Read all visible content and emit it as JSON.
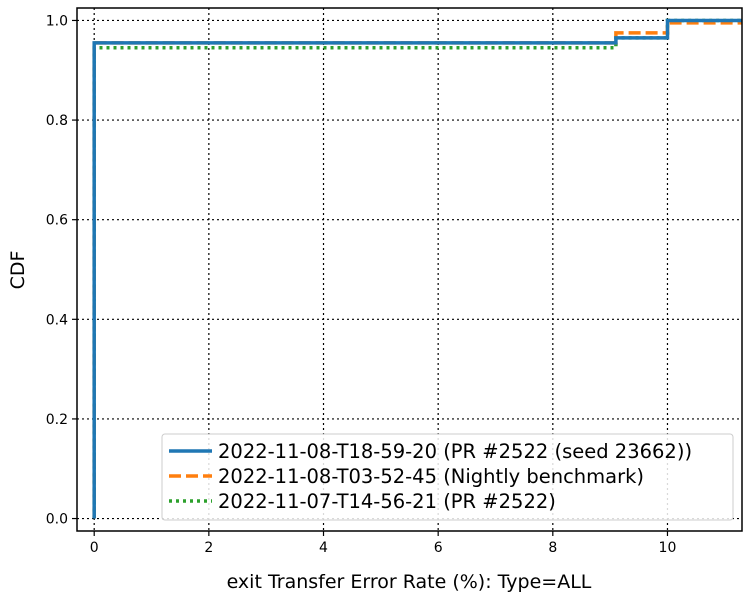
{
  "chart_data": {
    "type": "line",
    "step": true,
    "title": "",
    "xlabel": "exit Transfer Error Rate (%): Type=ALL",
    "ylabel": "CDF",
    "xlim": [
      -0.3,
      11.3
    ],
    "ylim": [
      -0.025,
      1.025
    ],
    "xticks": [
      0,
      2,
      4,
      6,
      8,
      10
    ],
    "yticks": [
      0.0,
      0.2,
      0.4,
      0.6,
      0.8,
      1.0
    ],
    "xtick_labels": [
      "0",
      "2",
      "4",
      "6",
      "8",
      "10"
    ],
    "ytick_labels": [
      "0.0",
      "0.2",
      "0.4",
      "0.6",
      "0.8",
      "1.0"
    ],
    "grid": true,
    "legend_position": "lower-right",
    "series": [
      {
        "name": "2022-11-08-T18-59-20 (PR #2522 (seed 23662))",
        "color": "#1f77b4",
        "style": "solid",
        "x": [
          0,
          0,
          9.1,
          9.1,
          10,
          10,
          11.3
        ],
        "y": [
          0,
          0.955,
          0.955,
          0.965,
          0.965,
          1.0,
          1.0
        ]
      },
      {
        "name": "2022-11-08-T03-52-45 (Nightly benchmark)",
        "color": "#ff7f0e",
        "style": "dashed",
        "x": [
          0,
          0,
          9.1,
          9.1,
          10,
          10,
          11.3
        ],
        "y": [
          0,
          0.955,
          0.955,
          0.975,
          0.975,
          0.995,
          0.995
        ]
      },
      {
        "name": "2022-11-07-T14-56-21 (PR #2522)",
        "color": "#2ca02c",
        "style": "dotted",
        "x": [
          0,
          0,
          9.1,
          9.1,
          10,
          10,
          11.3
        ],
        "y": [
          0,
          0.945,
          0.945,
          0.965,
          0.965,
          1.0,
          1.0
        ]
      }
    ]
  }
}
